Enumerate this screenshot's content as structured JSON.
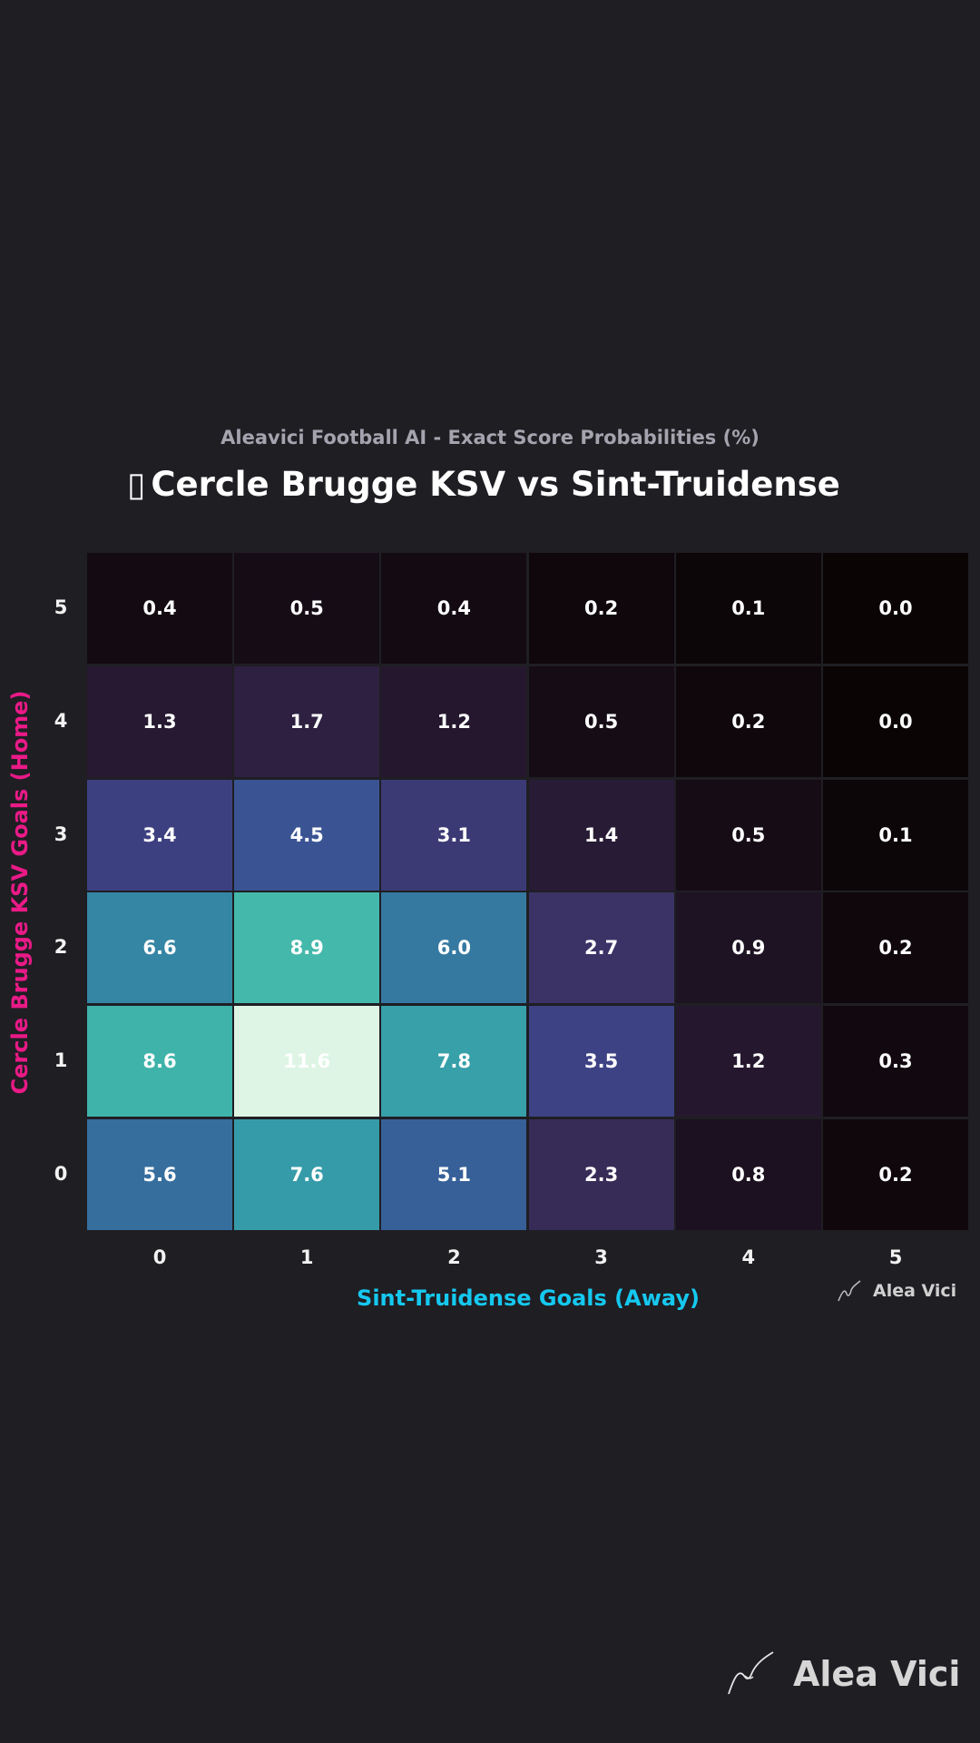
{
  "header": {
    "subtitle": "Aleavici Football AI - Exact Score Probabilities (%)",
    "title_icon": "▯",
    "title": "Cercle Brugge KSV vs Sint-Truidense"
  },
  "branding": {
    "small": "Alea Vici",
    "large": "Alea Vici",
    "logo_icon": "signature-curve-icon"
  },
  "chart_data": {
    "type": "heatmap",
    "xlabel": "Sint-Truidense Goals (Away)",
    "ylabel": "Cercle Brugge KSV Goals (Home)",
    "x_categories": [
      "0",
      "1",
      "2",
      "3",
      "4",
      "5"
    ],
    "y_categories": [
      "5",
      "4",
      "3",
      "2",
      "1",
      "0"
    ],
    "values": [
      [
        0.4,
        0.5,
        0.4,
        0.2,
        0.1,
        0.0
      ],
      [
        1.3,
        1.7,
        1.2,
        0.5,
        0.2,
        0.0
      ],
      [
        3.4,
        4.5,
        3.1,
        1.4,
        0.5,
        0.1
      ],
      [
        6.6,
        8.9,
        6.0,
        2.7,
        0.9,
        0.2
      ],
      [
        8.6,
        11.6,
        7.8,
        3.5,
        1.2,
        0.3
      ],
      [
        5.6,
        7.6,
        5.1,
        2.3,
        0.8,
        0.2
      ]
    ],
    "value_range": [
      0,
      11.6
    ],
    "colormap": "mako",
    "colors": {
      "background": "#1f1e23",
      "xlabel": "#15c8ef",
      "ylabel": "#ea1a87"
    }
  }
}
